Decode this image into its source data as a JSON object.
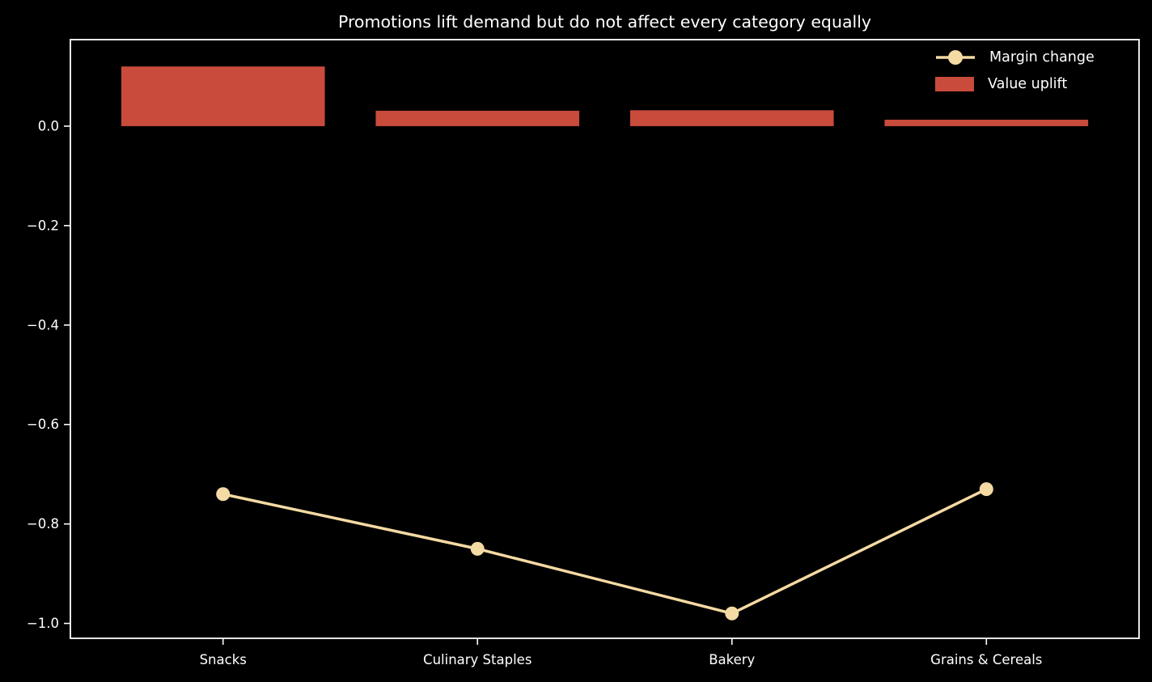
{
  "chart_data": {
    "type": "combo-bar-line",
    "title": "Promotions lift demand but do not affect every category equally",
    "categories": [
      "Snacks",
      "Culinary Staples",
      "Bakery",
      "Grains & Cereals"
    ],
    "series": [
      {
        "name": "Margin change",
        "kind": "line",
        "marker": "circle",
        "color": "#f4daa3",
        "values": [
          -0.74,
          -0.85,
          -0.98,
          -0.73
        ]
      },
      {
        "name": "Value uplift",
        "kind": "bar",
        "color": "#c84b3c",
        "values": [
          0.12,
          0.031,
          0.032,
          0.013
        ]
      }
    ],
    "xlabel": "",
    "ylabel": "",
    "xlim": [
      -0.6,
      3.6
    ],
    "ylim": [
      -1.03,
      0.174
    ],
    "yticks": [
      0,
      -0.2,
      -0.4,
      -0.6,
      -0.8,
      -1.0
    ],
    "ytick_labels": [
      "0.0",
      "−0.2",
      "−0.4",
      "−0.6",
      "−0.8",
      "−1.0"
    ],
    "grid": false,
    "legend_position": "upper-right",
    "background_color": "#000000",
    "axis_color": "#ffffff",
    "text_color": "#ffffff",
    "bar_width": 0.8
  }
}
